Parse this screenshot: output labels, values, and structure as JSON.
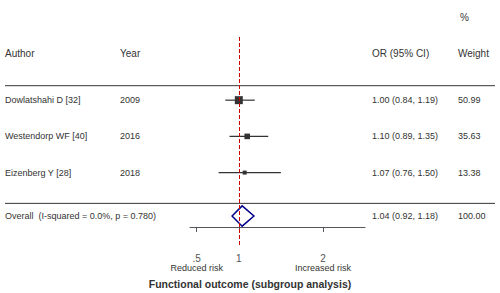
{
  "chart_data": {
    "type": "forest",
    "xlabel": "Functional outcome (subgroup analysis)",
    "annotations": [
      {
        "text": "Reduced risk",
        "x": 0.5
      },
      {
        "text": "Increased risk",
        "x": 2
      }
    ],
    "columns": [
      "Author",
      "Year",
      "OR (95% CI)",
      "Weight"
    ],
    "columns_note": "%",
    "color": "#333333",
    "studies": [
      {
        "author": "Dowlatshahi D [32]",
        "year": "2009",
        "or": 1.0,
        "ci_low": 0.84,
        "ci_high": 1.19,
        "weight": 50.99,
        "or_text": "1.00 (0.84, 1.19)",
        "weight_text": "50.99"
      },
      {
        "author": "Westendorp WF [40]",
        "year": "2016",
        "or": 1.1,
        "ci_low": 0.89,
        "ci_high": 1.35,
        "weight": 35.63,
        "or_text": "1.10 (0.89, 1.35)",
        "weight_text": "35.63"
      },
      {
        "author": "Eizenberg Y [28]",
        "year": "2018",
        "or": 1.07,
        "ci_low": 0.76,
        "ci_high": 1.5,
        "weight": 13.38,
        "or_text": "1.07 (0.76, 1.50)",
        "weight_text": "13.38"
      }
    ],
    "overall": {
      "label": "Overall  (I-squared = 0.0%, p = 0.780)",
      "or": 1.04,
      "ci_low": 0.92,
      "ci_high": 1.18,
      "or_text": "1.04 (0.92, 1.18)",
      "weight_text": "100.00",
      "color": "#00008B"
    },
    "reference_line": {
      "x": 1.0,
      "color": "#cc0000",
      "line_style": "dashed"
    },
    "xlim": [
      0.42,
      2.5
    ],
    "xticks": [
      {
        "value": 0.5,
        "label": ".5"
      },
      1,
      2
    ],
    "grid": false
  }
}
